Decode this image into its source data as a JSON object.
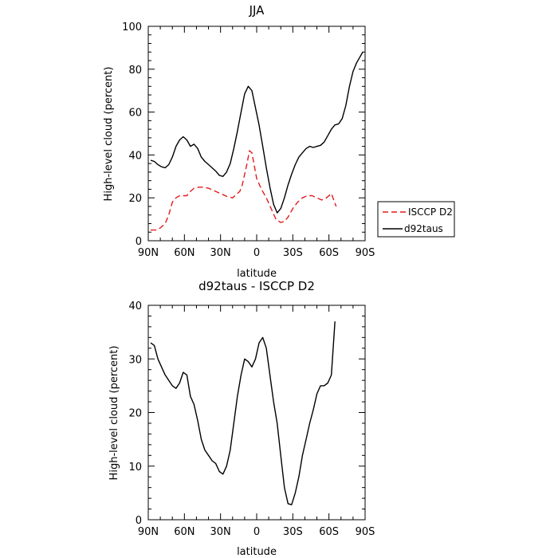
{
  "chart_data": [
    {
      "type": "line",
      "title": "JJA",
      "xlabel": "latitude",
      "ylabel": "High-level cloud (percent)",
      "xlim": [
        90,
        -90
      ],
      "ylim": [
        0,
        100
      ],
      "xticks": [
        {
          "value": 90,
          "label": "90N"
        },
        {
          "value": 60,
          "label": "60N"
        },
        {
          "value": 30,
          "label": "30N"
        },
        {
          "value": 0,
          "label": "0"
        },
        {
          "value": -30,
          "label": "30S"
        },
        {
          "value": -60,
          "label": "60S"
        },
        {
          "value": -90,
          "label": "90S"
        }
      ],
      "yticks": [
        0,
        20,
        40,
        60,
        80,
        100
      ],
      "legend_position": "right",
      "series": [
        {
          "name": "ISCCP D2",
          "color": "#e41a1c",
          "dash": "dashed",
          "x": [
            88,
            84,
            80,
            76,
            73,
            70,
            67,
            64,
            61,
            58,
            55,
            52,
            48,
            44,
            40,
            36,
            32,
            28,
            24,
            20,
            16,
            14,
            12,
            10,
            8,
            6,
            4,
            2,
            0,
            -4,
            -8,
            -12,
            -16,
            -20,
            -23,
            -26,
            -30,
            -34,
            -38,
            -42,
            -46,
            -50,
            -54,
            -58,
            -62,
            -66
          ],
          "values": [
            5,
            5,
            6,
            8,
            12,
            18,
            20,
            21,
            21,
            21,
            23,
            24.5,
            25,
            25,
            24.5,
            23.5,
            22.5,
            21.5,
            20.5,
            20,
            22,
            23,
            26,
            31,
            36,
            42,
            41,
            35,
            29,
            24,
            20,
            15,
            10,
            8.5,
            9,
            11,
            15,
            18,
            20,
            21,
            21,
            20,
            19,
            20,
            22,
            16
          ]
        },
        {
          "name": "d92taus",
          "color": "#000000",
          "dash": "solid",
          "x": [
            88,
            85,
            82,
            79,
            76,
            73,
            70,
            67,
            64,
            61,
            58,
            55,
            52,
            49,
            46,
            43,
            40,
            37,
            34,
            31,
            28,
            25,
            22,
            19,
            16,
            13,
            10,
            7,
            4,
            1,
            -2,
            -5,
            -8,
            -11,
            -14,
            -17,
            -20,
            -23,
            -26,
            -29,
            -32,
            -35,
            -38,
            -41,
            -44,
            -47,
            -50,
            -53,
            -56,
            -59,
            -62,
            -65,
            -68,
            -71,
            -74,
            -77,
            -80,
            -83,
            -86,
            -88
          ],
          "values": [
            37.5,
            37,
            35.5,
            34.5,
            34,
            35.5,
            39,
            44,
            47,
            48.5,
            47,
            44,
            45,
            43,
            39,
            37,
            35.5,
            34,
            32.5,
            30.5,
            30,
            32,
            36,
            43,
            51,
            60,
            68.5,
            72,
            70,
            62,
            54,
            44,
            34,
            25,
            17,
            13,
            15,
            20,
            26,
            31,
            35.5,
            39,
            41,
            43,
            44,
            43.5,
            44,
            44.5,
            46,
            49,
            52,
            54,
            54.5,
            57,
            63,
            72,
            79,
            83,
            86,
            88
          ]
        }
      ]
    },
    {
      "type": "line",
      "title": "d92taus - ISCCP D2",
      "xlabel": "latitude",
      "ylabel": "High-level cloud (percent)",
      "xlim": [
        90,
        -90
      ],
      "ylim": [
        0,
        40
      ],
      "xticks": [
        {
          "value": 90,
          "label": "90N"
        },
        {
          "value": 60,
          "label": "60N"
        },
        {
          "value": 30,
          "label": "30N"
        },
        {
          "value": 0,
          "label": "0"
        },
        {
          "value": -30,
          "label": "30S"
        },
        {
          "value": -60,
          "label": "60S"
        },
        {
          "value": -90,
          "label": "90S"
        }
      ],
      "yticks": [
        0,
        10,
        20,
        30,
        40
      ],
      "series": [
        {
          "color": "#000000",
          "dash": "solid",
          "x": [
            88,
            85,
            82,
            79,
            76,
            73,
            70,
            67,
            64,
            61,
            58,
            55,
            52,
            49,
            46,
            43,
            40,
            37,
            34,
            31,
            28,
            25,
            22,
            19,
            16,
            13,
            10,
            7,
            4,
            1,
            -2,
            -5,
            -8,
            -11,
            -14,
            -17,
            -20,
            -23,
            -26,
            -29,
            -32,
            -35,
            -38,
            -41,
            -44,
            -47,
            -50,
            -53,
            -56,
            -59,
            -62,
            -65
          ],
          "values": [
            33,
            32.5,
            30,
            28.5,
            27,
            26,
            25,
            24.5,
            25.5,
            27.5,
            27,
            23,
            21.5,
            18.5,
            15,
            13,
            12,
            11,
            10.5,
            9,
            8.5,
            10,
            13,
            18,
            23,
            27,
            30,
            29.5,
            28.5,
            30,
            33,
            34,
            32,
            27,
            22,
            18,
            12,
            6,
            3,
            2.8,
            5,
            8,
            12,
            15,
            18,
            20.5,
            23.5,
            25,
            25,
            25.5,
            27,
            37
          ]
        }
      ]
    }
  ]
}
